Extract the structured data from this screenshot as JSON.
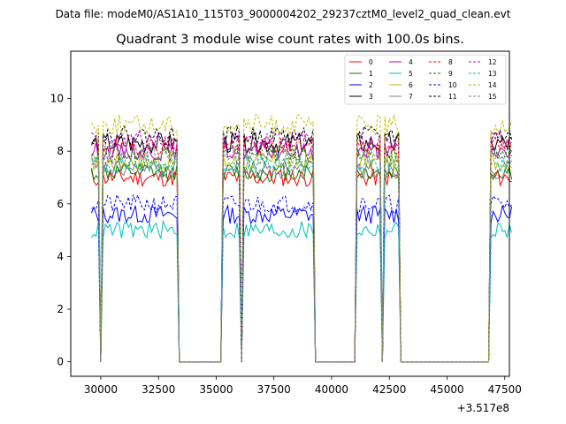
{
  "suptitle": "Data file: modeM0/AS1A10_115T03_9000004202_29237cztM0_level2_quad_clean.evt",
  "chart_data": {
    "type": "line",
    "title": "Quadrant 3 module wise count rates with 100.0s bins.",
    "xlabel": "",
    "ylabel": "",
    "x_offset_label": "+3.517e8",
    "xlim": [
      28700,
      47700
    ],
    "ylim": [
      -0.55,
      11.8
    ],
    "xticks": [
      30000,
      32500,
      35000,
      37500,
      40000,
      42500,
      45000,
      47500
    ],
    "xtick_labels": [
      "30000",
      "32500",
      "35000",
      "37500",
      "40000",
      "42500",
      "45000",
      "47500"
    ],
    "yticks": [
      0,
      2,
      4,
      6,
      8,
      10
    ],
    "ytick_labels": [
      "0",
      "2",
      "4",
      "6",
      "8",
      "10"
    ],
    "legend_position": "top-right",
    "grid": false,
    "segments": [
      {
        "start": 29600,
        "end": 33300
      },
      {
        "start": 35300,
        "end": 39200
      },
      {
        "start": 41100,
        "end": 42900
      },
      {
        "start": 46900,
        "end": 47800
      }
    ],
    "dips": [
      {
        "x": 30000,
        "value": 0.0
      },
      {
        "x": 36100,
        "value": 0.0
      },
      {
        "x": 42200,
        "value": 0.0
      }
    ],
    "gap_level": 0.0,
    "series": [
      {
        "name": "0",
        "color": "#ff0000",
        "dashed": false,
        "level": 7.0,
        "noise": 0.35,
        "seed": 11
      },
      {
        "name": "1",
        "color": "#008000",
        "dashed": false,
        "level": 7.2,
        "noise": 0.35,
        "seed": 12
      },
      {
        "name": "2",
        "color": "#0000ff",
        "dashed": false,
        "level": 5.6,
        "noise": 0.35,
        "seed": 13
      },
      {
        "name": "3",
        "color": "#000000",
        "dashed": false,
        "level": 8.3,
        "noise": 0.4,
        "seed": 14
      },
      {
        "name": "4",
        "color": "#bf00bf",
        "dashed": false,
        "level": 8.0,
        "noise": 0.35,
        "seed": 15
      },
      {
        "name": "5",
        "color": "#00bfbf",
        "dashed": false,
        "level": 5.0,
        "noise": 0.35,
        "seed": 16
      },
      {
        "name": "6",
        "color": "#bfbf00",
        "dashed": false,
        "level": 7.6,
        "noise": 0.35,
        "seed": 17
      },
      {
        "name": "7",
        "color": "#808080",
        "dashed": false,
        "level": 7.3,
        "noise": 0.35,
        "seed": 18
      },
      {
        "name": "8",
        "color": "#ff0000",
        "dashed": true,
        "level": 8.2,
        "noise": 0.35,
        "seed": 19
      },
      {
        "name": "9",
        "color": "#008000",
        "dashed": true,
        "level": 7.9,
        "noise": 0.35,
        "seed": 20
      },
      {
        "name": "10",
        "color": "#0000ff",
        "dashed": true,
        "level": 6.0,
        "noise": 0.35,
        "seed": 21
      },
      {
        "name": "11",
        "color": "#000000",
        "dashed": true,
        "level": 8.6,
        "noise": 0.35,
        "seed": 22
      },
      {
        "name": "12",
        "color": "#bf00bf",
        "dashed": true,
        "level": 8.4,
        "noise": 0.35,
        "seed": 23
      },
      {
        "name": "13",
        "color": "#00bfbf",
        "dashed": true,
        "level": 7.5,
        "noise": 0.35,
        "seed": 24
      },
      {
        "name": "14",
        "color": "#bfbf00",
        "dashed": true,
        "level": 9.0,
        "noise": 0.4,
        "seed": 25
      },
      {
        "name": "15",
        "color": "#808080",
        "dashed": true,
        "level": 7.8,
        "noise": 0.35,
        "seed": 26
      }
    ]
  }
}
